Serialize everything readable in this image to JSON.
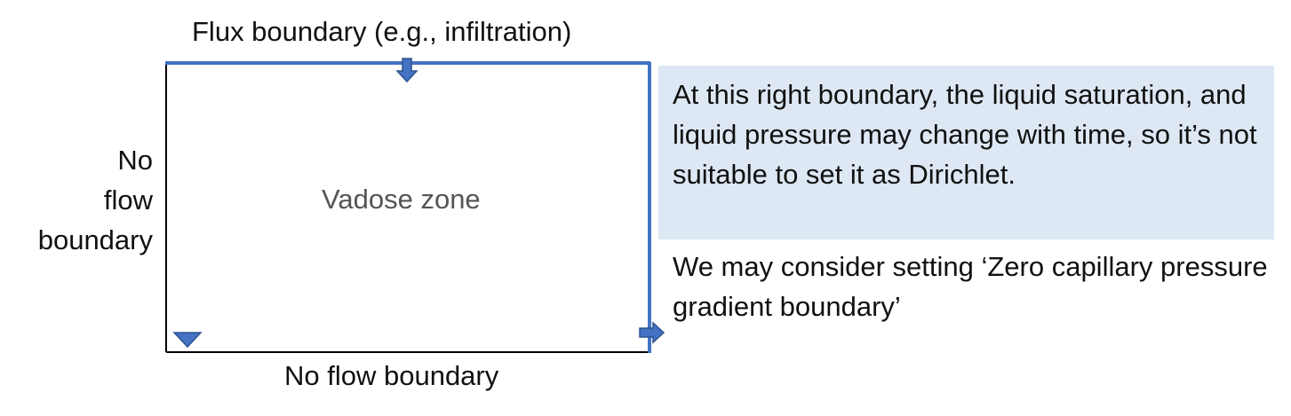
{
  "labels": {
    "top_boundary": "Flux boundary (e.g., infiltration)",
    "left_boundary": [
      "No",
      "flow",
      "boundary"
    ],
    "bottom_boundary": "No flow boundary",
    "domain": "Vadose zone"
  },
  "notes": {
    "right_boundary": "At this right boundary, the liquid saturation, and liquid pressure may change with time, so it’s not suitable to set it as Dirichlet.",
    "suggestion": "We may consider setting ‘Zero capillary pressure gradient boundary’"
  },
  "colors": {
    "flux_boundary": "#4472c4",
    "no_flow_boundary": "#000000",
    "note_background": "#dee8f4",
    "arrow_fill": "#4472c4",
    "arrow_stroke": "#2f528f"
  }
}
